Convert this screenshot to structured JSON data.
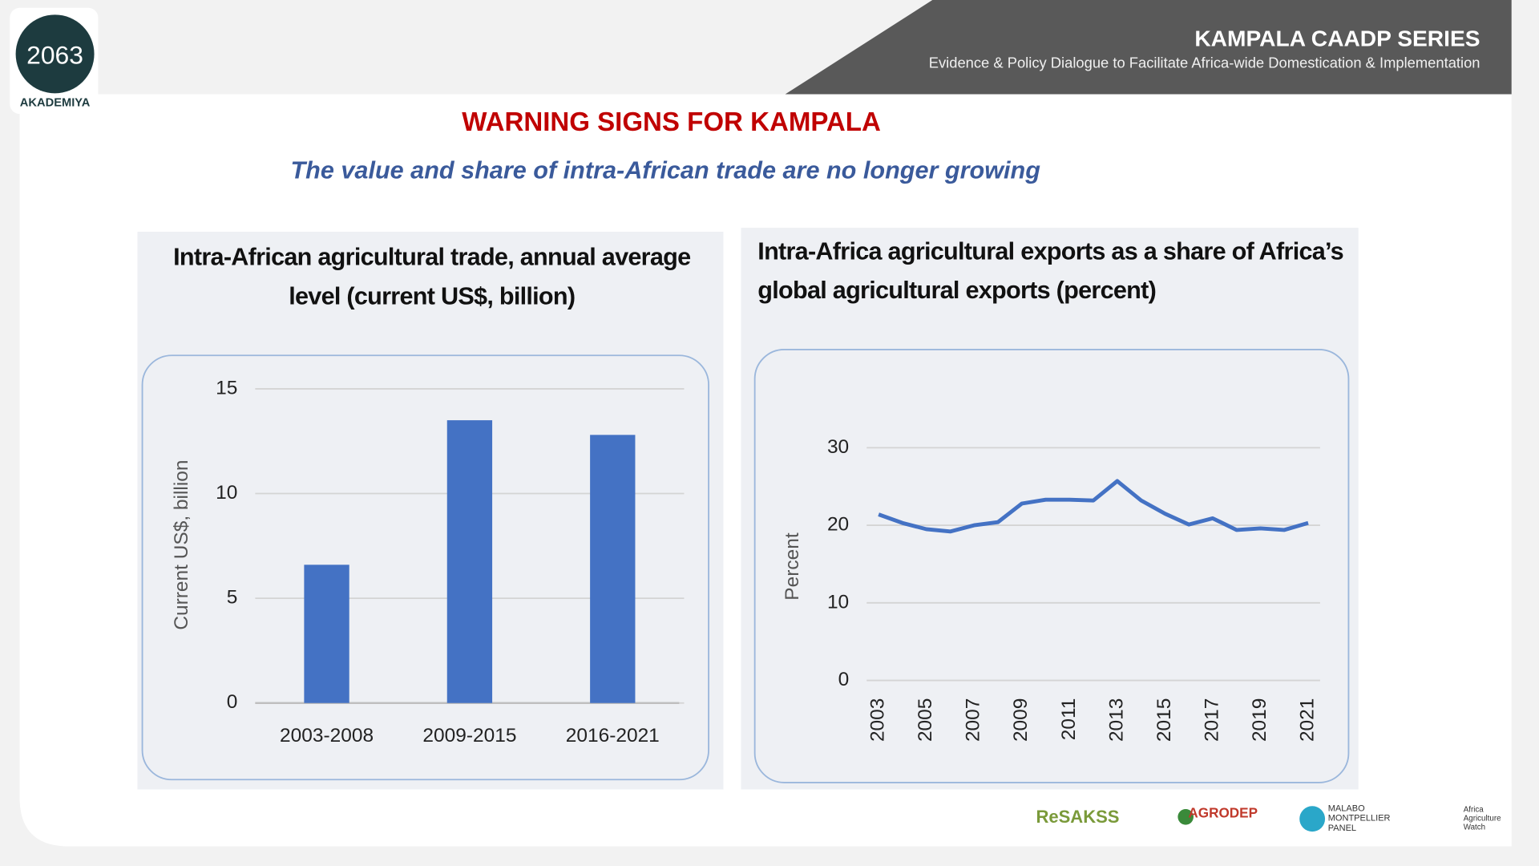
{
  "header": {
    "logo_number": "2063",
    "logo_name": "AKADEMIYA",
    "series_title": "KAMPALA CAADP SERIES",
    "series_subtitle": "Evidence & Policy Dialogue to Facilitate Africa-wide Domestication & Implementation"
  },
  "slide": {
    "title": "WARNING SIGNS FOR KAMPALA",
    "subtitle": "The value and share of intra-African trade are no longer growing"
  },
  "chart_data": [
    {
      "type": "bar",
      "title": "Intra-African agricultural trade, annual average level (current US$, billion)",
      "y_label": "Current US$, billion",
      "categories": [
        "2003-2008",
        "2009-2015",
        "2016-2021"
      ],
      "values": [
        6.6,
        13.5,
        12.8
      ],
      "color": "#4472c4",
      "ylim": [
        0,
        15
      ],
      "yticks": [
        0,
        5,
        10,
        15
      ],
      "grid": true
    },
    {
      "type": "line",
      "title": "Intra-Africa agricultural exports as a share of Africa’s global agricultural exports (percent)",
      "y_label": "Percent",
      "x": [
        2003,
        2004,
        2005,
        2006,
        2007,
        2008,
        2009,
        2010,
        2011,
        2012,
        2013,
        2014,
        2015,
        2016,
        2017,
        2018,
        2019,
        2020,
        2021
      ],
      "values": [
        21.4,
        20.3,
        19.5,
        19.2,
        20.0,
        20.4,
        22.8,
        23.3,
        23.3,
        23.2,
        25.7,
        23.2,
        21.5,
        20.1,
        20.9,
        19.4,
        19.6,
        19.4,
        20.3
      ],
      "color": "#4472c4",
      "xlim": [
        2002.5,
        2021.5
      ],
      "xticks": [
        2003,
        2005,
        2007,
        2009,
        2011,
        2013,
        2015,
        2017,
        2019,
        2021
      ],
      "ylim": [
        0,
        30
      ],
      "yticks": [
        0,
        10,
        20,
        30
      ],
      "grid": true
    }
  ],
  "footer": {
    "logos": [
      "ReSAKSS",
      "AGRODEP",
      "MALABO MONTPELLIER PANEL",
      "Africa Agriculture Watch"
    ]
  }
}
